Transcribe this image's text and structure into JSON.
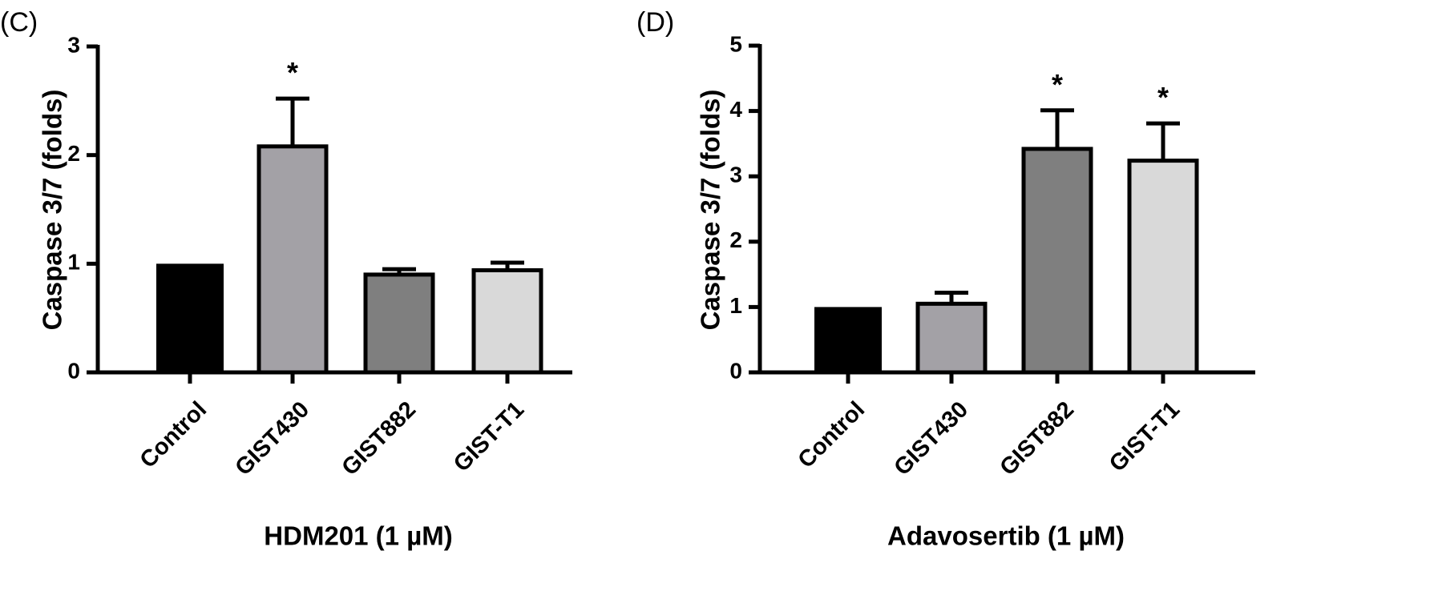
{
  "chart_data": [
    {
      "type": "bar",
      "panel_label": "(C)",
      "title": "",
      "xlabel": "HDM201 (1 µM)",
      "ylabel": "Caspase 3/7 (folds)",
      "ylim": [
        0,
        3
      ],
      "yticks": [
        "0",
        "1",
        "2",
        "3"
      ],
      "categories": [
        "Control",
        "GIST430",
        "GIST882",
        "GIST-T1"
      ],
      "values": [
        1.0,
        2.08,
        0.9,
        0.94
      ],
      "errors": [
        0,
        0.44,
        0.05,
        0.07
      ],
      "significance": [
        "",
        "*",
        "",
        ""
      ],
      "colors": [
        "#000000",
        "#a3a1a6",
        "#7f7f7f",
        "#d9d9d9"
      ],
      "grid": false
    },
    {
      "type": "bar",
      "panel_label": "(D)",
      "title": "",
      "xlabel": "Adavosertib (1 µM)",
      "ylabel": "Caspase 3/7 (folds)",
      "ylim": [
        0,
        5
      ],
      "yticks": [
        "0",
        "1",
        "2",
        "3",
        "4",
        "5"
      ],
      "categories": [
        "Control",
        "GIST430",
        "GIST882",
        "GIST-T1"
      ],
      "values": [
        1.0,
        1.05,
        3.42,
        3.24
      ],
      "errors": [
        0,
        0.17,
        0.59,
        0.57
      ],
      "significance": [
        "",
        "",
        "*",
        "*"
      ],
      "colors": [
        "#000000",
        "#a3a1a6",
        "#7f7f7f",
        "#d9d9d9"
      ],
      "grid": false
    }
  ]
}
